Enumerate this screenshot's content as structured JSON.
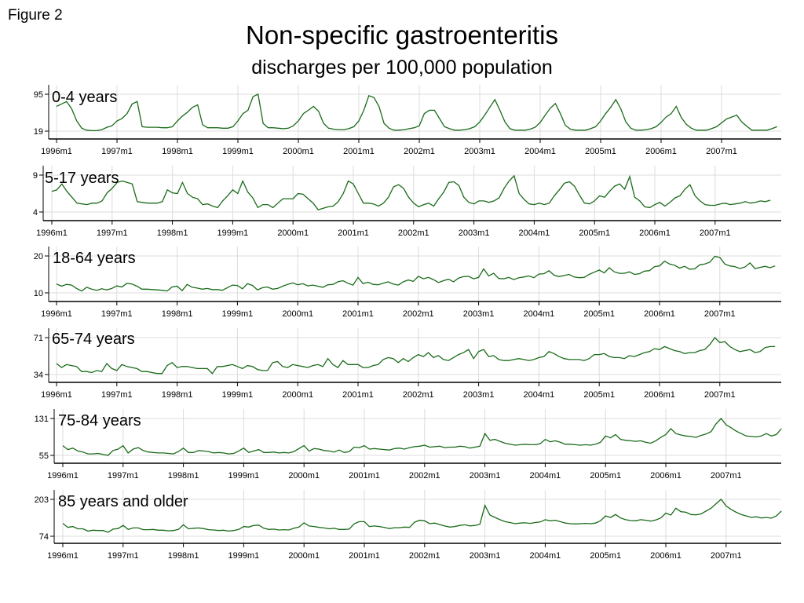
{
  "figure_label": "Figure 2",
  "title": "Non-specific gastroenteritis",
  "subtitle": "discharges per 100,000 population",
  "colors": {
    "line": "#1a6b1a",
    "grid": "#dcdcdc",
    "axis": "#000000"
  },
  "x_tick_labels": [
    "1996m1",
    "1997m1",
    "1998m1",
    "1999m1",
    "2000m1",
    "2001m1",
    "2002m1",
    "2003m1",
    "2004m1",
    "2005m1",
    "2006m1",
    "2007m1"
  ],
  "chart_data": [
    {
      "type": "line",
      "title": "0-4 years",
      "x_start": "1996m1",
      "frequency": "monthly",
      "ylim": [
        19,
        95
      ],
      "yticks": [
        19,
        95
      ],
      "xticks": [
        "1996m1",
        "1997m1",
        "1998m1",
        "1999m1",
        "2000m1",
        "2001m1",
        "2002m1",
        "2003m1",
        "2004m1",
        "2005m1",
        "2006m1",
        "2007m1"
      ],
      "grid": true,
      "values": [
        70,
        75,
        80,
        65,
        40,
        25,
        21,
        20,
        20,
        22,
        27,
        30,
        40,
        45,
        55,
        75,
        80,
        28,
        27,
        27,
        27,
        26,
        26,
        28,
        40,
        50,
        58,
        68,
        73,
        32,
        26,
        26,
        26,
        25,
        25,
        28,
        40,
        55,
        62,
        90,
        95,
        35,
        26,
        26,
        25,
        24,
        25,
        30,
        40,
        55,
        62,
        70,
        60,
        35,
        25,
        23,
        22,
        22,
        24,
        28,
        40,
        62,
        92,
        88,
        70,
        35,
        25,
        21,
        21,
        22,
        24,
        26,
        30,
        55,
        62,
        62,
        45,
        28,
        24,
        21,
        21,
        22,
        24,
        28,
        38,
        52,
        68,
        84,
        62,
        38,
        24,
        21,
        21,
        21,
        23,
        27,
        37,
        52,
        66,
        76,
        55,
        31,
        23,
        21,
        21,
        21,
        24,
        28,
        40,
        55,
        68,
        84,
        65,
        38,
        25,
        21,
        21,
        22,
        24,
        28,
        37,
        48,
        55,
        70,
        47,
        33,
        25,
        21,
        21,
        21,
        24,
        28,
        36,
        44,
        48,
        52,
        38,
        29,
        21,
        21,
        21,
        21,
        24,
        28
      ]
    },
    {
      "type": "line",
      "title": "5-17 years",
      "x_start": "1996m1",
      "frequency": "monthly",
      "ylim": [
        4,
        9
      ],
      "yticks": [
        4,
        9
      ],
      "xticks": [
        "1996m1",
        "1997m1",
        "1998m1",
        "1999m1",
        "2000m1",
        "2001m1",
        "2002m1",
        "2003m1",
        "2004m1",
        "2005m1",
        "2006m1",
        "2007m1"
      ],
      "grid": true,
      "values": [
        6.8,
        7.0,
        7.8,
        6.8,
        6.0,
        5.2,
        5.1,
        5.0,
        5.2,
        5.2,
        5.5,
        6.6,
        7.2,
        8.0,
        8.2,
        8.0,
        7.8,
        5.4,
        5.3,
        5.2,
        5.2,
        5.2,
        5.4,
        7.0,
        6.6,
        6.5,
        8.0,
        6.5,
        6.0,
        5.8,
        5.0,
        5.1,
        4.8,
        4.6,
        5.5,
        6.2,
        7.0,
        6.5,
        8.2,
        6.7,
        5.9,
        4.6,
        5.0,
        5.0,
        4.6,
        5.2,
        5.8,
        5.8,
        5.8,
        6.5,
        6.4,
        5.8,
        5.2,
        4.3,
        4.5,
        4.7,
        4.8,
        5.4,
        6.5,
        8.2,
        7.8,
        6.5,
        5.2,
        5.2,
        5.1,
        4.8,
        5.2,
        6.0,
        7.4,
        7.7,
        7.2,
        6.0,
        5.2,
        4.7,
        5.0,
        5.2,
        4.8,
        5.8,
        6.7,
        8.0,
        8.1,
        7.6,
        6.0,
        5.3,
        5.1,
        5.5,
        5.5,
        5.3,
        5.5,
        5.9,
        7.2,
        8.2,
        8.9,
        6.5,
        5.7,
        5.1,
        5.0,
        5.2,
        5.0,
        5.2,
        6.2,
        7.0,
        7.9,
        8.1,
        7.5,
        6.3,
        5.2,
        5.1,
        5.5,
        6.2,
        6.0,
        6.8,
        7.5,
        7.8,
        7.1,
        8.8,
        6.0,
        5.5,
        4.7,
        4.6,
        5.0,
        5.3,
        4.8,
        5.3,
        5.9,
        6.2,
        7.1,
        7.7,
        6.2,
        5.5,
        5.0,
        4.9,
        4.9,
        5.1,
        5.2,
        5.0,
        5.1,
        5.2,
        5.4,
        5.2,
        5.3,
        5.5,
        5.4,
        5.6
      ]
    },
    {
      "type": "line",
      "title": "18-64 years",
      "x_start": "1996m1",
      "frequency": "monthly",
      "ylim": [
        10,
        20
      ],
      "yticks": [
        10,
        20
      ],
      "xticks": [
        "1996m1",
        "1997m1",
        "1998m1",
        "1999m1",
        "2000m1",
        "2001m1",
        "2002m1",
        "2003m1",
        "2004m1",
        "2005m1",
        "2006m1",
        "2007m1"
      ],
      "grid": true,
      "values": [
        12.4,
        11.8,
        12.3,
        12.1,
        11.2,
        10.5,
        11.5,
        11.0,
        10.7,
        11.1,
        10.8,
        11.2,
        11.9,
        11.6,
        12.6,
        12.4,
        11.8,
        11.0,
        11.0,
        10.9,
        10.8,
        10.7,
        10.5,
        11.6,
        11.8,
        10.6,
        12.3,
        11.5,
        11.3,
        11.0,
        11.2,
        10.9,
        10.9,
        10.7,
        11.4,
        12.1,
        12.0,
        11.1,
        12.5,
        12.0,
        10.8,
        11.4,
        11.6,
        11.0,
        11.2,
        11.8,
        12.3,
        12.7,
        12.2,
        12.5,
        11.9,
        12.1,
        11.8,
        11.5,
        12.2,
        12.3,
        13.0,
        13.3,
        12.6,
        12.1,
        14.2,
        12.5,
        12.9,
        12.3,
        12.2,
        12.6,
        13.0,
        12.4,
        12.1,
        13.0,
        13.5,
        13.1,
        14.5,
        13.8,
        14.2,
        13.6,
        12.8,
        13.3,
        13.7,
        13.0,
        14.0,
        14.4,
        14.5,
        13.8,
        14.2,
        16.5,
        14.6,
        15.3,
        13.9,
        13.8,
        14.2,
        13.6,
        14.1,
        14.3,
        14.6,
        14.1,
        15.1,
        15.2,
        16.0,
        14.8,
        14.4,
        14.7,
        15.0,
        14.3,
        14.1,
        14.2,
        15.0,
        15.6,
        16.2,
        15.4,
        16.8,
        15.7,
        15.3,
        15.3,
        15.7,
        15.0,
        15.2,
        15.9,
        16.0,
        17.1,
        17.3,
        18.6,
        17.8,
        17.5,
        16.7,
        17.2,
        16.4,
        16.5,
        17.6,
        17.8,
        18.3,
        19.9,
        19.6,
        17.8,
        17.3,
        17.1,
        16.6,
        17.0,
        18.1,
        16.6,
        16.9,
        17.2,
        16.8,
        17.3
      ]
    },
    {
      "type": "line",
      "title": "65-74 years",
      "x_start": "1996m1",
      "frequency": "monthly",
      "ylim": [
        34,
        71
      ],
      "yticks": [
        34,
        71
      ],
      "xticks": [
        "1996m1",
        "1997m1",
        "1998m1",
        "1999m1",
        "2000m1",
        "2001m1",
        "2002m1",
        "2003m1",
        "2004m1",
        "2005m1",
        "2006m1",
        "2007m1"
      ],
      "grid": true,
      "values": [
        45,
        41,
        44,
        43,
        42,
        37,
        37,
        36,
        38,
        37,
        45,
        40,
        38,
        44,
        42,
        41,
        40,
        37,
        37,
        36,
        35,
        35,
        43,
        46,
        41,
        42,
        42,
        41,
        40,
        40,
        40,
        35,
        42,
        42,
        43,
        44,
        42,
        40,
        43,
        42,
        39,
        38,
        38,
        46,
        47,
        42,
        41,
        44,
        43,
        42,
        41,
        43,
        44,
        42,
        50,
        44,
        41,
        48,
        44,
        44,
        44,
        41,
        41,
        43,
        44,
        49,
        51,
        50,
        46,
        50,
        47,
        51,
        54,
        52,
        56,
        51,
        53,
        49,
        48,
        51,
        54,
        56,
        59,
        50,
        57,
        59,
        52,
        53,
        49,
        48,
        48,
        49,
        50,
        49,
        48,
        49,
        51,
        52,
        57,
        55,
        52,
        50,
        49,
        49,
        49,
        48,
        50,
        54,
        54,
        55,
        52,
        51,
        51,
        50,
        53,
        52,
        54,
        56,
        57,
        60,
        59,
        62,
        60,
        58,
        57,
        55,
        56,
        56,
        58,
        59,
        64,
        71,
        66,
        67,
        62,
        59,
        57,
        58,
        59,
        56,
        57,
        61,
        62,
        62
      ]
    },
    {
      "type": "line",
      "title": "75-84 years",
      "x_start": "1996m1",
      "frequency": "monthly",
      "ylim": [
        55,
        131
      ],
      "yticks": [
        55,
        131
      ],
      "xticks": [
        "1996m1",
        "1997m1",
        "1998m1",
        "1999m1",
        "2000m1",
        "2001m1",
        "2002m1",
        "2003m1",
        "2004m1",
        "2005m1",
        "2006m1",
        "2007m1"
      ],
      "grid": true,
      "values": [
        75,
        67,
        70,
        64,
        62,
        58,
        58,
        59,
        57,
        55,
        65,
        68,
        75,
        60,
        68,
        71,
        65,
        62,
        61,
        60,
        60,
        59,
        58,
        63,
        70,
        61,
        61,
        65,
        64,
        63,
        60,
        61,
        60,
        58,
        59,
        64,
        70,
        61,
        64,
        67,
        61,
        61,
        62,
        60,
        61,
        60,
        63,
        69,
        75,
        64,
        69,
        68,
        65,
        64,
        62,
        66,
        61,
        63,
        72,
        71,
        75,
        68,
        69,
        68,
        67,
        66,
        69,
        70,
        68,
        71,
        73,
        74,
        76,
        72,
        73,
        74,
        71,
        72,
        72,
        74,
        73,
        70,
        72,
        74,
        100,
        86,
        88,
        84,
        80,
        78,
        76,
        77,
        78,
        77,
        77,
        79,
        88,
        83,
        85,
        82,
        78,
        78,
        77,
        76,
        77,
        76,
        78,
        82,
        95,
        91,
        98,
        88,
        86,
        85,
        84,
        85,
        82,
        80,
        85,
        92,
        98,
        110,
        100,
        97,
        95,
        94,
        92,
        96,
        99,
        104,
        120,
        131,
        118,
        112,
        105,
        100,
        95,
        94,
        93,
        95,
        100,
        95,
        98,
        110
      ]
    },
    {
      "type": "line",
      "title": "85 years and older",
      "x_start": "1996m1",
      "frequency": "monthly",
      "ylim": [
        74,
        203
      ],
      "yticks": [
        74,
        203
      ],
      "xticks": [
        "1996m1",
        "1997m1",
        "1998m1",
        "1999m1",
        "2000m1",
        "2001m1",
        "2002m1",
        "2003m1",
        "2004m1",
        "2005m1",
        "2006m1",
        "2007m1"
      ],
      "grid": true,
      "values": [
        119,
        105,
        108,
        100,
        100,
        92,
        95,
        94,
        94,
        88,
        99,
        101,
        112,
        98,
        103,
        103,
        97,
        97,
        98,
        95,
        95,
        93,
        94,
        98,
        114,
        100,
        102,
        103,
        101,
        97,
        96,
        94,
        95,
        92,
        94,
        98,
        108,
        106,
        112,
        113,
        102,
        98,
        99,
        96,
        97,
        96,
        102,
        106,
        121,
        110,
        108,
        105,
        103,
        100,
        102,
        98,
        98,
        99,
        118,
        125,
        125,
        108,
        110,
        108,
        105,
        101,
        104,
        104,
        106,
        105,
        123,
        130,
        128,
        118,
        120,
        115,
        110,
        106,
        108,
        112,
        114,
        110,
        112,
        116,
        182,
        148,
        140,
        132,
        125,
        122,
        118,
        120,
        121,
        119,
        122,
        124,
        132,
        128,
        130,
        125,
        120,
        118,
        117,
        118,
        119,
        118,
        120,
        128,
        145,
        140,
        150,
        138,
        132,
        129,
        128,
        132,
        130,
        127,
        131,
        138,
        155,
        148,
        172,
        160,
        158,
        150,
        149,
        152,
        162,
        172,
        188,
        203,
        180,
        168,
        158,
        150,
        145,
        140,
        142,
        138,
        140,
        137,
        145,
        162
      ]
    }
  ]
}
